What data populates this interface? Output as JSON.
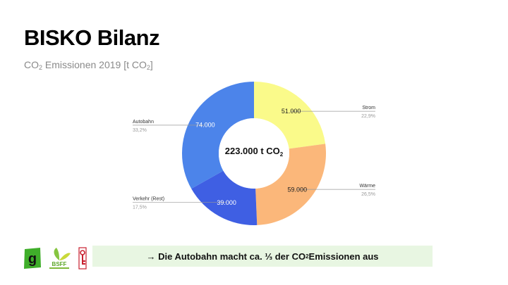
{
  "header": {
    "title": "BISKO Bilanz",
    "subtitle_prefix": "CO",
    "subtitle_sub": "2",
    "subtitle_mid": " Emissionen 2019 [t CO",
    "subtitle_sub2": "2",
    "subtitle_end": "]"
  },
  "chart_data": {
    "type": "pie",
    "donut": true,
    "center_label_main": "223.000 t CO",
    "center_label_sub": "2",
    "total": 223000,
    "slices": [
      {
        "name": "Strom",
        "value": 51000,
        "value_label": "51.000",
        "percent_label": "22,9%",
        "color": "#fafa8a"
      },
      {
        "name": "Wärme",
        "value": 59000,
        "value_label": "59.000",
        "percent_label": "26,5%",
        "color": "#fbb77a"
      },
      {
        "name": "Verkehr (Rest)",
        "value": 39000,
        "value_label": "39.000",
        "percent_label": "17,5%",
        "color": "#3f5fe3"
      },
      {
        "name": "Autobahn",
        "value": 74000,
        "value_label": "74.000",
        "percent_label": "33,2%",
        "color": "#4c84ea"
      }
    ]
  },
  "banner": {
    "arrow_text": "→ Die Autobahn macht ca. ⅓ der CO",
    "sub": "2",
    "end_text": " Emissionen aus"
  },
  "logos": {
    "logo1_letter": "g",
    "logo2_name": "BSFF"
  }
}
